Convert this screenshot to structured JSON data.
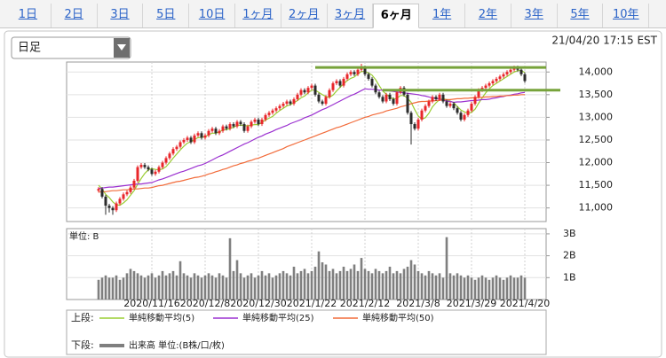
{
  "tabs": [
    "1日",
    "2日",
    "3日",
    "5日",
    "10日",
    "1ヶ月",
    "2ヶ月",
    "3ヶ月",
    "6ヶ月",
    "1年",
    "2年",
    "3年",
    "5年",
    "10年"
  ],
  "active_tab": 8,
  "timeframe": "日足",
  "timestamp": "21/04/20 17:15 EST",
  "legend": {
    "upper": "上段:",
    "lower": "下段:"
  },
  "chart_data": [
    {
      "type": "candlestick",
      "categories": [
        null,
        null,
        null,
        null,
        null,
        null,
        null,
        null,
        null,
        null,
        null,
        null,
        null,
        null,
        null,
        "2020/11/16",
        null,
        null,
        null,
        null,
        null,
        null,
        null,
        null,
        null,
        null,
        null,
        null,
        null,
        null,
        "2020/12/8",
        null,
        null,
        null,
        null,
        null,
        null,
        null,
        null,
        null,
        null,
        null,
        null,
        null,
        null,
        "2020/12/30",
        null,
        null,
        null,
        null,
        null,
        null,
        null,
        null,
        null,
        null,
        null,
        null,
        null,
        null,
        "2021/1/22",
        null,
        null,
        null,
        null,
        null,
        null,
        null,
        null,
        null,
        null,
        null,
        null,
        null,
        null,
        "2021/2/12",
        null,
        null,
        null,
        null,
        null,
        null,
        null,
        null,
        null,
        null,
        null,
        null,
        null,
        null,
        "2021/3/8",
        null,
        null,
        null,
        null,
        null,
        null,
        null,
        null,
        null,
        null,
        null,
        null,
        null,
        null,
        "2021/3/29",
        null,
        null,
        null,
        null,
        null,
        null,
        null,
        null,
        null,
        null,
        null,
        null,
        null,
        null,
        "2021/4/20"
      ],
      "open": [
        11380,
        11420,
        11250,
        11050,
        11000,
        10950,
        11100,
        11200,
        11300,
        11350,
        11450,
        11600,
        11900,
        11950,
        11900,
        11850,
        11750,
        11800,
        11900,
        12000,
        12100,
        12200,
        12300,
        12350,
        12450,
        12500,
        12550,
        12450,
        12600,
        12650,
        12550,
        12600,
        12700,
        12750,
        12650,
        12700,
        12800,
        12750,
        12850,
        12800,
        12900,
        12850,
        12700,
        12800,
        12900,
        12950,
        12850,
        12950,
        13050,
        13100,
        13150,
        13200,
        13250,
        13300,
        13350,
        13300,
        13400,
        13500,
        13600,
        13550,
        13650,
        13700,
        13500,
        13350,
        13300,
        13450,
        13600,
        13750,
        13800,
        13700,
        13850,
        13950,
        14000,
        13950,
        14050,
        14100,
        13950,
        13850,
        13700,
        13550,
        13450,
        13350,
        13500,
        13400,
        13300,
        13550,
        13650,
        13500,
        13100,
        12850,
        12750,
        12950,
        13150,
        13250,
        13350,
        13450,
        13400,
        13500,
        13350,
        13250,
        13300,
        13200,
        13100,
        12950,
        13050,
        13150,
        13300,
        13450,
        13600,
        13650,
        13700,
        13750,
        13800,
        13850,
        13900,
        13950,
        14000,
        14050,
        14100,
        14050,
        13950
      ],
      "high": [
        11460,
        11460,
        11290,
        11090,
        11040,
        11140,
        11240,
        11340,
        11390,
        11490,
        11640,
        11940,
        11990,
        11990,
        11940,
        11890,
        11840,
        11940,
        12040,
        12140,
        12240,
        12340,
        12390,
        12490,
        12540,
        12590,
        12590,
        12640,
        12690,
        12690,
        12640,
        12740,
        12790,
        12790,
        12740,
        12840,
        12840,
        12890,
        12890,
        12940,
        12940,
        12890,
        12840,
        12940,
        12990,
        12990,
        12990,
        13090,
        13140,
        13190,
        13240,
        13290,
        13340,
        13390,
        13390,
        13440,
        13540,
        13640,
        13640,
        13690,
        13740,
        13740,
        13540,
        13390,
        13490,
        13640,
        13790,
        13840,
        13840,
        13890,
        13990,
        14040,
        14040,
        14090,
        14180,
        14140,
        13990,
        13890,
        13740,
        13590,
        13490,
        13540,
        13540,
        13440,
        13590,
        13690,
        13690,
        13540,
        13140,
        12890,
        12990,
        13190,
        13290,
        13390,
        13490,
        13490,
        13540,
        13540,
        13390,
        13340,
        13340,
        13240,
        13140,
        13090,
        13190,
        13340,
        13490,
        13640,
        13690,
        13740,
        13790,
        13840,
        13890,
        13940,
        13990,
        14040,
        14090,
        14140,
        14140,
        14090,
        13990
      ],
      "low": [
        11340,
        11210,
        10850,
        10900,
        10850,
        10910,
        11060,
        11160,
        11260,
        11310,
        11410,
        11560,
        11860,
        11860,
        11810,
        11710,
        11710,
        11760,
        11860,
        11960,
        12060,
        12160,
        12260,
        12310,
        12410,
        12460,
        12410,
        12410,
        12560,
        12510,
        12510,
        12560,
        12660,
        12610,
        12610,
        12660,
        12710,
        12710,
        12760,
        12760,
        12810,
        12660,
        12660,
        12760,
        12860,
        12810,
        12810,
        12910,
        13010,
        13060,
        13110,
        13160,
        13210,
        13260,
        13260,
        13260,
        13360,
        13460,
        13510,
        13510,
        13610,
        13460,
        13310,
        13260,
        13260,
        13410,
        13560,
        13710,
        13660,
        13660,
        13810,
        13910,
        13910,
        13910,
        14010,
        13910,
        13810,
        13660,
        13510,
        13410,
        13310,
        13310,
        13360,
        13260,
        13260,
        13510,
        13460,
        13060,
        12400,
        12710,
        12710,
        12910,
        13110,
        13210,
        13310,
        13360,
        13360,
        13310,
        13210,
        13210,
        13160,
        13060,
        12910,
        12910,
        13010,
        13110,
        13260,
        13410,
        13560,
        13610,
        13660,
        13710,
        13760,
        13810,
        13860,
        13910,
        13960,
        14010,
        14010,
        13910,
        13760
      ],
      "close": [
        11420,
        11250,
        11050,
        11000,
        10950,
        11100,
        11200,
        11300,
        11350,
        11450,
        11600,
        11900,
        11950,
        11900,
        11850,
        11750,
        11800,
        11900,
        12000,
        12100,
        12200,
        12300,
        12350,
        12450,
        12500,
        12550,
        12450,
        12600,
        12650,
        12550,
        12600,
        12700,
        12750,
        12650,
        12700,
        12800,
        12750,
        12850,
        12800,
        12900,
        12850,
        12700,
        12800,
        12900,
        12950,
        12850,
        12950,
        13050,
        13100,
        13150,
        13200,
        13250,
        13300,
        13350,
        13300,
        13400,
        13500,
        13600,
        13550,
        13650,
        13700,
        13500,
        13350,
        13300,
        13450,
        13600,
        13750,
        13800,
        13700,
        13850,
        13950,
        14000,
        13950,
        14050,
        14100,
        13950,
        13850,
        13700,
        13550,
        13450,
        13350,
        13500,
        13400,
        13300,
        13550,
        13650,
        13500,
        13100,
        12850,
        12750,
        12950,
        13150,
        13250,
        13350,
        13450,
        13400,
        13500,
        13350,
        13250,
        13300,
        13200,
        13100,
        12950,
        13050,
        13150,
        13300,
        13450,
        13600,
        13650,
        13700,
        13750,
        13800,
        13850,
        13900,
        13950,
        14000,
        14050,
        14100,
        14050,
        13950,
        13800
      ],
      "up_color": "#e8262a",
      "down_color": "#2b2b2b",
      "series": [
        {
          "name": "単純移動平均(5)",
          "color": "#9acd32",
          "values": [
            11500,
            11420,
            11300,
            11230,
            11134,
            11070,
            11060,
            11110,
            11180,
            11280,
            11380,
            11520,
            11650,
            11760,
            11840,
            11870,
            11850,
            11840,
            11860,
            11910,
            12000,
            12100,
            12190,
            12280,
            12360,
            12430,
            12460,
            12510,
            12550,
            12560,
            12570,
            12620,
            12650,
            12650,
            12680,
            12720,
            12730,
            12750,
            12780,
            12820,
            12830,
            12820,
            12810,
            12830,
            12840,
            12840,
            12890,
            12940,
            12980,
            13020,
            13090,
            13150,
            13200,
            13250,
            13280,
            13320,
            13370,
            13430,
            13470,
            13540,
            13600,
            13600,
            13550,
            13500,
            13460,
            13440,
            13490,
            13580,
            13660,
            13740,
            13810,
            13860,
            13890,
            13960,
            14010,
            14010,
            13980,
            13930,
            13830,
            13700,
            13580,
            13510,
            13450,
            13400,
            13420,
            13480,
            13480,
            13420,
            13330,
            13170,
            13030,
            12960,
            12990,
            13090,
            13230,
            13320,
            13390,
            13410,
            13390,
            13360,
            13320,
            13240,
            13160,
            13120,
            13090,
            13110,
            13180,
            13310,
            13430,
            13540,
            13630,
            13700,
            13750,
            13800,
            13850,
            13900,
            13950,
            14000,
            14030,
            14030,
            13990
          ]
        },
        {
          "name": "単純移動平均(25)",
          "color": "#9b30d0",
          "values": [
            11430,
            11440,
            11450,
            11460,
            11460,
            11470,
            11480,
            11490,
            11500,
            11510,
            11520,
            11530,
            11530,
            11540,
            11550,
            11560,
            11590,
            11620,
            11640,
            11670,
            11700,
            11730,
            11760,
            11790,
            11810,
            11840,
            11870,
            11900,
            11930,
            11950,
            11980,
            12020,
            12060,
            12100,
            12140,
            12170,
            12210,
            12250,
            12290,
            12330,
            12370,
            12410,
            12440,
            12480,
            12520,
            12560,
            12590,
            12630,
            12660,
            12690,
            12730,
            12760,
            12790,
            12820,
            12860,
            12890,
            12920,
            12950,
            12990,
            13020,
            13050,
            13090,
            13130,
            13170,
            13200,
            13240,
            13280,
            13320,
            13360,
            13400,
            13440,
            13480,
            13510,
            13550,
            13590,
            13630,
            13620,
            13620,
            13610,
            13600,
            13600,
            13590,
            13580,
            13570,
            13560,
            13550,
            13540,
            13530,
            13520,
            13510,
            13500,
            13480,
            13470,
            13450,
            13430,
            13420,
            13400,
            13380,
            13360,
            13350,
            13330,
            13340,
            13340,
            13350,
            13360,
            13370,
            13370,
            13380,
            13390,
            13390,
            13400,
            13420,
            13430,
            13450,
            13460,
            13480,
            13490,
            13510,
            13520,
            13540,
            13550
          ]
        },
        {
          "name": "単純移動平均(50)",
          "color": "#f26b3a",
          "values": [
            11350,
            11360,
            11360,
            11370,
            11380,
            11380,
            11390,
            11400,
            11400,
            11410,
            11420,
            11420,
            11430,
            11440,
            11440,
            11450,
            11470,
            11490,
            11500,
            11520,
            11540,
            11560,
            11580,
            11590,
            11610,
            11630,
            11650,
            11670,
            11680,
            11700,
            11720,
            11750,
            11770,
            11800,
            11820,
            11850,
            11870,
            11900,
            11930,
            11950,
            11980,
            12000,
            12030,
            12050,
            12080,
            12100,
            12130,
            12160,
            12190,
            12220,
            12250,
            12280,
            12310,
            12350,
            12380,
            12410,
            12440,
            12470,
            12500,
            12530,
            12560,
            12590,
            12620,
            12650,
            12680,
            12710,
            12740,
            12770,
            12790,
            12820,
            12850,
            12880,
            12910,
            12940,
            12970,
            13000,
            13020,
            13050,
            13070,
            13090,
            13110,
            13140,
            13160,
            13180,
            13200,
            13230,
            13250,
            13270,
            13300,
            13320,
            13340,
            13350,
            13350,
            13360,
            13360,
            13370,
            13380,
            13380,
            13390,
            13390,
            13400,
            13410,
            13410,
            13420,
            13420,
            13430,
            13430,
            13440,
            13440,
            13450,
            13450,
            13460,
            13460,
            13470,
            13470,
            13480,
            13480,
            13490,
            13490,
            13500,
            13500
          ]
        }
      ],
      "trend_lines": [
        {
          "value": 14100,
          "x": [
            61,
            126
          ],
          "color": "#77a33b"
        },
        {
          "value": 13600,
          "x": [
            80,
            130
          ],
          "color": "#77a33b"
        }
      ],
      "xlim": [
        -9,
        126
      ],
      "ylim": [
        10700,
        14220
      ],
      "yticks": [
        {
          "value": 11000,
          "label": "11,000"
        },
        {
          "value": 11500,
          "label": "11,500"
        },
        {
          "value": 12000,
          "label": "12,000"
        },
        {
          "value": 12500,
          "label": "12,500"
        },
        {
          "value": 13000,
          "label": "13,000"
        },
        {
          "value": 13500,
          "label": "13,500"
        },
        {
          "value": 14000,
          "label": "14,000"
        }
      ],
      "grid": true
    },
    {
      "type": "bar",
      "name": "出来高 単位:(B株/口/枚)",
      "unit_label": "単位: B",
      "color": "#7f7f7f",
      "values": [
        0.9,
        1.0,
        1.1,
        1.0,
        1.0,
        1.1,
        0.9,
        1.0,
        1.2,
        1.4,
        1.3,
        1.2,
        1.1,
        1.0,
        1.1,
        1.2,
        1.0,
        1.1,
        1.3,
        1.1,
        1.2,
        1.3,
        1.1,
        1.75,
        1.2,
        1.1,
        1.0,
        1.2,
        1.1,
        1.0,
        1.1,
        1.2,
        1.1,
        1.0,
        1.2,
        1.1,
        1.0,
        2.8,
        1.3,
        1.8,
        1.2,
        1.0,
        1.1,
        1.2,
        1.0,
        1.1,
        1.3,
        1.1,
        1.2,
        1.0,
        1.1,
        1.2,
        1.3,
        1.2,
        1.1,
        1.5,
        1.2,
        1.3,
        1.4,
        1.2,
        1.3,
        1.5,
        2.2,
        1.7,
        1.6,
        1.3,
        1.4,
        1.2,
        1.3,
        1.5,
        1.3,
        1.4,
        1.6,
        1.3,
        1.9,
        1.4,
        1.3,
        1.2,
        1.4,
        1.3,
        1.2,
        1.3,
        1.5,
        1.2,
        1.3,
        1.2,
        1.4,
        1.5,
        1.8,
        1.6,
        1.3,
        1.2,
        1.1,
        1.3,
        1.2,
        1.1,
        1.2,
        1.0,
        2.85,
        1.2,
        1.1,
        1.2,
        1.1,
        1.0,
        1.1,
        1.0,
        0.9,
        1.0,
        1.1,
        1.0,
        0.9,
        1.0,
        1.1,
        1.0,
        0.9,
        1.0,
        1.1,
        1.0,
        1.0,
        1.1,
        1.0
      ],
      "ylim": [
        0,
        3.24
      ],
      "yticks": [
        {
          "value": 1,
          "label": "1B"
        },
        {
          "value": 2,
          "label": "2B"
        },
        {
          "value": 3,
          "label": "3B"
        }
      ],
      "grid": true
    }
  ]
}
